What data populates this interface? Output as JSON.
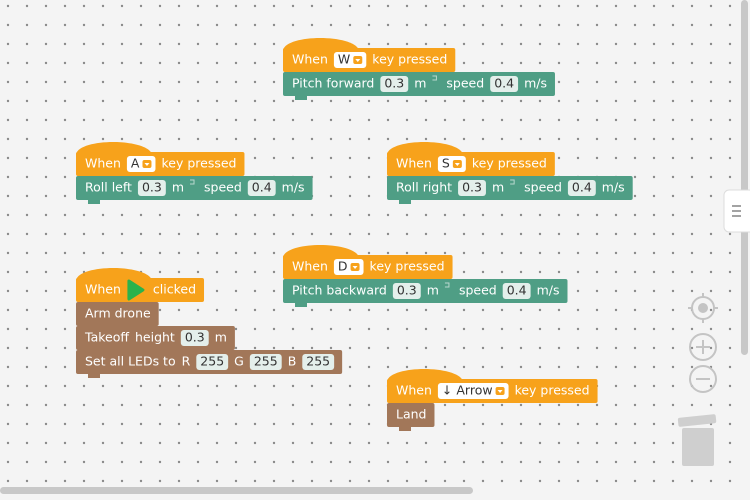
{
  "scripts": [
    {
      "hat": [
        [
          "When",
          {
            "dropdown": "W"
          },
          "key pressed"
        ]
      ],
      "blocks": [
        [
          [
            "Pitch forward",
            {
              "field": 0.3
            },
            "m"
          ],
          [
            "speed",
            {
              "field": 0.4
            },
            "m/s"
          ]
        ]
      ]
    },
    {
      "hat": [
        [
          "When",
          {
            "dropdown": "A"
          },
          "key pressed"
        ]
      ],
      "blocks": [
        [
          [
            "Roll left",
            {
              "field": 0.3
            },
            "m"
          ],
          [
            "speed",
            {
              "field": 0.4
            },
            "m/s"
          ]
        ]
      ]
    },
    {
      "hat": [
        [
          "When",
          {
            "dropdown": "S"
          },
          "key pressed"
        ]
      ],
      "blocks": [
        [
          [
            "Roll right",
            {
              "field": 0.3
            },
            "m"
          ],
          [
            "speed",
            {
              "field": 0.4
            },
            "m/s"
          ]
        ]
      ]
    },
    {
      "hat": [
        [
          "When",
          {
            "dropdown": "D"
          },
          "key pressed"
        ]
      ],
      "blocks": [
        [
          [
            "Pitch backward",
            {
              "field": 0.3
            },
            "m"
          ],
          [
            "speed",
            {
              "field": 0.4
            },
            "m/s"
          ]
        ]
      ]
    },
    {
      "hat": [
        [
          "When",
          "clicked"
        ]
      ],
      "blocks": [
        [
          [
            "Arm drone"
          ]
        ],
        [
          [
            "Takeoff",
            "height",
            {
              "field": 0.3
            },
            "m"
          ]
        ],
        [
          [
            "Set all LEDs to",
            "R",
            {
              "field": 255
            },
            "G",
            {
              "field": 255
            },
            "B",
            {
              "field": 255
            }
          ]
        ]
      ]
    },
    {
      "hat": [
        [
          "When",
          {
            "dropdown": "↓ Arrow"
          },
          "key pressed"
        ]
      ],
      "blocks": [
        [
          [
            "Land"
          ]
        ]
      ]
    }
  ]
}
